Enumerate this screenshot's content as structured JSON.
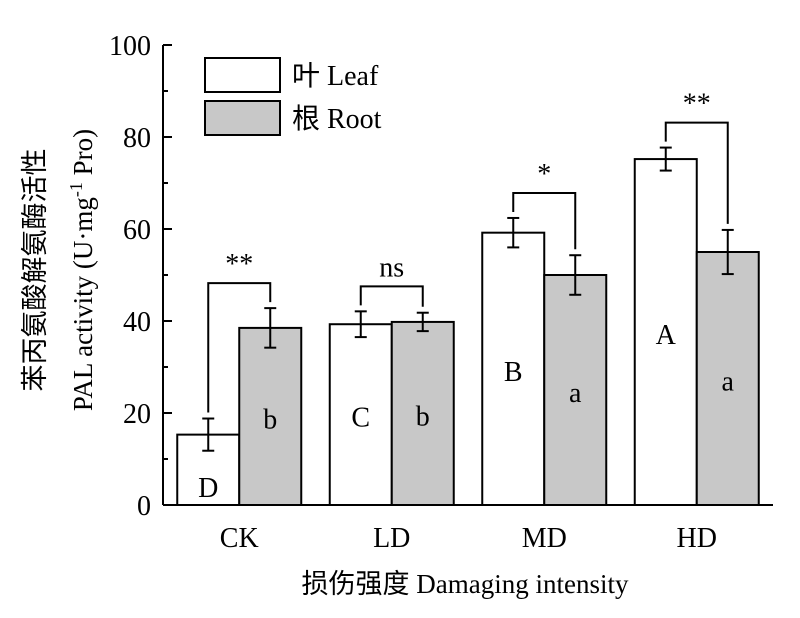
{
  "chart_data": {
    "type": "bar",
    "categories": [
      "CK",
      "LD",
      "MD",
      "HD"
    ],
    "series": [
      {
        "name": "叶 Leaf",
        "color": "#ffffff",
        "values": [
          15.3,
          39.3,
          59.2,
          75.2
        ],
        "errors": [
          3.5,
          2.8,
          3.2,
          2.5
        ],
        "letters": [
          "D",
          "C",
          "B",
          "A"
        ]
      },
      {
        "name": "根 Root",
        "color": "#c8c8c8",
        "values": [
          38.5,
          39.8,
          50.0,
          55.0
        ],
        "errors": [
          4.3,
          2.0,
          4.3,
          4.8
        ],
        "letters": [
          "b",
          "b",
          "a",
          "a"
        ]
      }
    ],
    "significance": [
      "**",
      "ns",
      "*",
      "**"
    ],
    "ylabel_line1": "苯丙氨酸解氨酶活性",
    "ylabel_line2_prefix": "PAL activity (U·mg",
    "ylabel_line2_sup": "-1",
    "ylabel_line2_suffix": " Pro)",
    "xlabel": "损伤强度 Damaging intensity",
    "ylim": [
      0,
      100
    ],
    "yticks": [
      0,
      20,
      40,
      60,
      80,
      100
    ],
    "legend_position": "top-left",
    "grid": false
  }
}
